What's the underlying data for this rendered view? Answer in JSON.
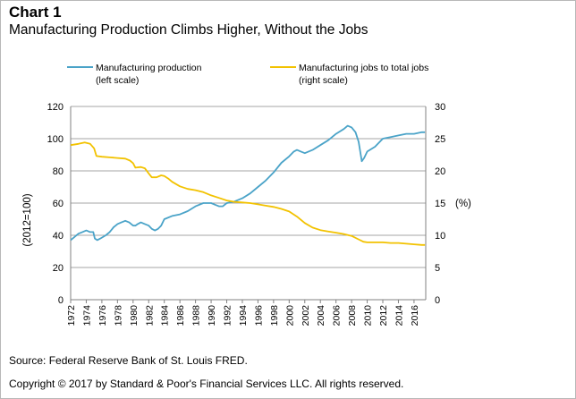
{
  "header": {
    "chart_label": "Chart 1",
    "chart_title": "Manufacturing Production Climbs Higher, Without the Jobs"
  },
  "footer": {
    "source": "Source: Federal Reserve Bank of St. Louis FRED.",
    "copyright": "Copyright © 2017 by Standard & Poor's Financial Services LLC. All rights reserved."
  },
  "colors": {
    "production": "#4aa3c8",
    "jobs": "#f2c200",
    "grid": "#a6a6a6",
    "axis": "#808080"
  },
  "chart_data": {
    "type": "line",
    "title": "Manufacturing Production Climbs Higher, Without the Jobs",
    "ylabel": "(2012=100)",
    "y2label": "(%)",
    "ylim": [
      0,
      120
    ],
    "y2lim": [
      0,
      30
    ],
    "yticks": [
      0,
      20,
      40,
      60,
      80,
      100,
      120
    ],
    "y2ticks": [
      0,
      5,
      10,
      15,
      20,
      25,
      30
    ],
    "xlim": [
      1972,
      2017.5
    ],
    "xticks": [
      "1972",
      "1974",
      "1976",
      "1978",
      "1980",
      "1982",
      "1984",
      "1986",
      "1988",
      "1990",
      "1992",
      "1994",
      "1996",
      "1998",
      "2000",
      "2002",
      "2004",
      "2006",
      "2008",
      "2010",
      "2012",
      "2014",
      "2016"
    ],
    "grid": true,
    "legend": [
      {
        "line1": "Manufacturing production",
        "line2": "(left scale)"
      },
      {
        "line1": "Manufacturing jobs to total jobs",
        "line2": "(right scale)"
      }
    ],
    "series": [
      {
        "name": "Manufacturing production (left scale)",
        "axis": "left",
        "x": [
          1972.0,
          1972.5,
          1973.0,
          1973.5,
          1974.0,
          1974.5,
          1974.9,
          1975.1,
          1975.4,
          1975.8,
          1976.5,
          1977.0,
          1977.5,
          1978.0,
          1978.5,
          1979.0,
          1979.5,
          1980.0,
          1980.3,
          1980.6,
          1981.0,
          1981.5,
          1982.0,
          1982.4,
          1982.8,
          1983.2,
          1983.6,
          1984.0,
          1985.0,
          1986.0,
          1987.0,
          1988.0,
          1989.0,
          1990.0,
          1990.5,
          1991.0,
          1991.5,
          1992.0,
          1993.0,
          1994.0,
          1995.0,
          1996.0,
          1997.0,
          1998.0,
          1999.0,
          2000.0,
          2000.6,
          2001.0,
          2001.5,
          2002.0,
          2003.0,
          2004.0,
          2005.0,
          2006.0,
          2007.0,
          2007.5,
          2008.0,
          2008.5,
          2008.9,
          2009.3,
          2009.6,
          2010.0,
          2011.0,
          2012.0,
          2013.0,
          2014.0,
          2015.0,
          2016.0,
          2017.0,
          2017.4
        ],
        "values": [
          37,
          39,
          41,
          42,
          43,
          42,
          42,
          38,
          37,
          38,
          40,
          42,
          45,
          47,
          48,
          49,
          48,
          46,
          46,
          47,
          48,
          47,
          46,
          44,
          43,
          44,
          46,
          50,
          52,
          53,
          55,
          58,
          60,
          60,
          59,
          58,
          58,
          60,
          61,
          63,
          66,
          70,
          74,
          79,
          85,
          89,
          92,
          93,
          92,
          91,
          93,
          96,
          99,
          103,
          106,
          108,
          107,
          104,
          98,
          86,
          88,
          92,
          95,
          100,
          101,
          102,
          103,
          103,
          104,
          104
        ]
      },
      {
        "name": "Manufacturing jobs to total jobs (right scale)",
        "axis": "right",
        "x": [
          1972.0,
          1973.0,
          1973.8,
          1974.5,
          1975.0,
          1975.3,
          1976.0,
          1977.0,
          1978.0,
          1979.0,
          1979.6,
          1980.0,
          1980.3,
          1981.0,
          1981.5,
          1982.0,
          1982.4,
          1983.0,
          1983.6,
          1984.0,
          1984.5,
          1985.0,
          1986.0,
          1987.0,
          1988.0,
          1989.0,
          1990.0,
          1991.0,
          1992.0,
          1993.0,
          1994.0,
          1995.0,
          1996.0,
          1997.0,
          1998.0,
          1999.0,
          2000.0,
          2001.0,
          2002.0,
          2003.0,
          2004.0,
          2005.0,
          2006.0,
          2007.0,
          2008.0,
          2009.0,
          2009.5,
          2010.0,
          2011.0,
          2012.0,
          2013.0,
          2014.0,
          2015.0,
          2016.0,
          2017.0,
          2017.4
        ],
        "values": [
          24.0,
          24.2,
          24.4,
          24.2,
          23.5,
          22.3,
          22.2,
          22.1,
          22.0,
          21.9,
          21.6,
          21.2,
          20.5,
          20.6,
          20.4,
          19.6,
          19.0,
          19.0,
          19.3,
          19.2,
          18.8,
          18.3,
          17.6,
          17.2,
          17.0,
          16.7,
          16.2,
          15.8,
          15.4,
          15.2,
          15.1,
          15.0,
          14.8,
          14.6,
          14.4,
          14.1,
          13.7,
          12.9,
          11.9,
          11.2,
          10.8,
          10.6,
          10.4,
          10.2,
          9.9,
          9.3,
          9.0,
          8.9,
          8.9,
          8.9,
          8.8,
          8.8,
          8.7,
          8.6,
          8.5,
          8.5
        ]
      }
    ]
  }
}
